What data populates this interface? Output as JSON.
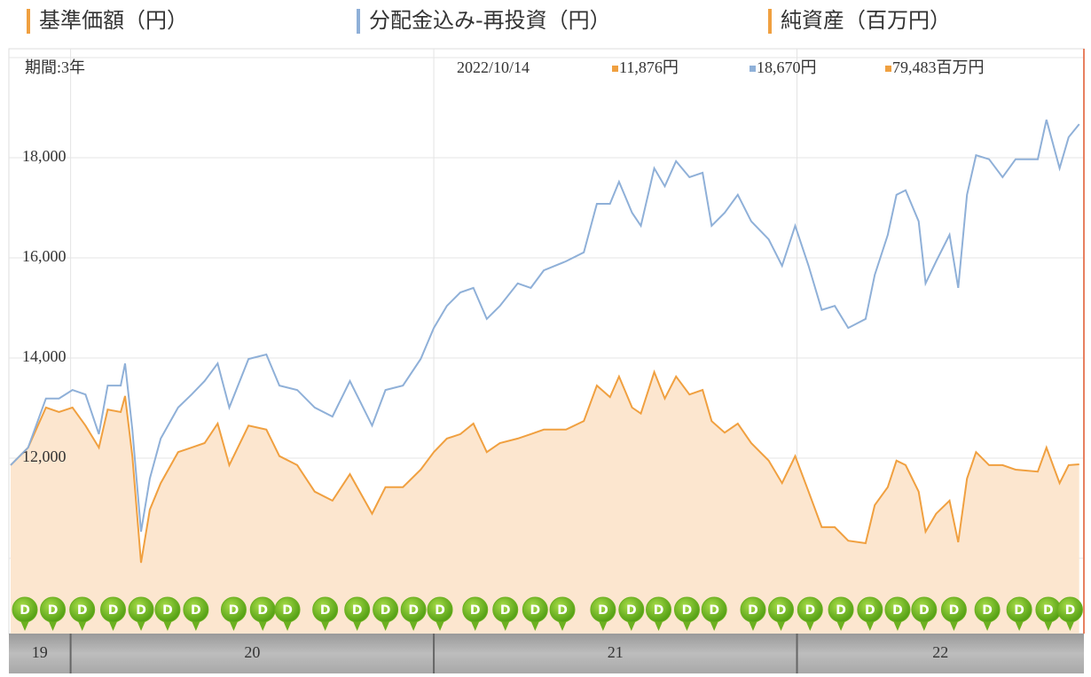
{
  "chart_data": {
    "type": "line",
    "legend": [
      {
        "name": "基準価額（円）",
        "color": "#f0a040"
      },
      {
        "name": "分配金込み-再投資（円）",
        "color": "#8fb0d8"
      },
      {
        "name": "純資産（百万円）",
        "color": "#f0a040"
      }
    ],
    "period_label": "期間:3年",
    "latest_date": "2022/10/14",
    "latest_labels": [
      "11,876円",
      "18,670円",
      "79,483百万円"
    ],
    "latest_colors": [
      "#f0a040",
      "#8fb0d8",
      "#f0a040"
    ],
    "x": [
      2019.835,
      2019.883,
      2019.932,
      2019.968,
      2020.005,
      2020.041,
      2020.078,
      2020.102,
      2020.138,
      2020.15,
      2020.17,
      2020.194,
      2020.218,
      2020.248,
      2020.296,
      2020.333,
      2020.369,
      2020.405,
      2020.437,
      2020.49,
      2020.539,
      2020.575,
      2020.624,
      2020.672,
      2020.721,
      2020.769,
      2020.83,
      2020.867,
      2020.915,
      2020.964,
      2021.0,
      2021.036,
      2021.073,
      2021.109,
      2021.146,
      2021.182,
      2021.231,
      2021.267,
      2021.303,
      2021.364,
      2021.413,
      2021.449,
      2021.485,
      2021.51,
      2021.546,
      2021.57,
      2021.607,
      2021.636,
      2021.667,
      2021.704,
      2021.74,
      2021.765,
      2021.801,
      2021.837,
      2021.874,
      2021.922,
      2021.959,
      2021.995,
      2022.032,
      2022.068,
      2022.104,
      2022.141,
      2022.189,
      2022.214,
      2022.25,
      2022.274,
      2022.299,
      2022.335,
      2022.354,
      2022.383,
      2022.42,
      2022.444,
      2022.468,
      2022.493,
      2022.529,
      2022.566,
      2022.602,
      2022.663,
      2022.687,
      2022.723,
      2022.748,
      2022.777
    ],
    "series": [
      {
        "name": "基準価額（円）",
        "color": "#f0a040",
        "fill": "#fce6cf",
        "values": [
          11860,
          12210,
          13010,
          12920,
          13010,
          12650,
          12210,
          12970,
          12920,
          13240,
          12040,
          9910,
          10970,
          11500,
          12120,
          12210,
          12300,
          12690,
          11860,
          12650,
          12570,
          12040,
          11860,
          11330,
          11150,
          11680,
          10890,
          11420,
          11420,
          11770,
          12120,
          12390,
          12480,
          12690,
          12120,
          12300,
          12390,
          12480,
          12570,
          12570,
          12740,
          13450,
          13220,
          13630,
          13010,
          12890,
          13720,
          13190,
          13630,
          13270,
          13360,
          12740,
          12510,
          12690,
          12300,
          11950,
          11500,
          12040,
          11330,
          10620,
          10620,
          10350,
          10300,
          11060,
          11420,
          11950,
          11860,
          11330,
          10530,
          10890,
          11150,
          10320,
          11590,
          12120,
          11860,
          11860,
          11770,
          11730,
          12210,
          11500,
          11860,
          11876
        ]
      },
      {
        "name": "分配金込み-再投資（円）",
        "color": "#8fb0d8",
        "values": [
          11860,
          12210,
          13190,
          13190,
          13360,
          13270,
          12480,
          13450,
          13450,
          13890,
          12570,
          10530,
          11590,
          12390,
          13010,
          13270,
          13540,
          13890,
          13010,
          13980,
          14070,
          13450,
          13360,
          13010,
          12830,
          13540,
          12650,
          13360,
          13450,
          13980,
          14600,
          15040,
          15310,
          15400,
          14780,
          15040,
          15490,
          15400,
          15750,
          15930,
          16110,
          17080,
          17080,
          17520,
          16900,
          16640,
          17790,
          17430,
          17930,
          17610,
          17700,
          16640,
          16900,
          17260,
          16730,
          16370,
          15840,
          16640,
          15840,
          14960,
          15040,
          14600,
          14780,
          15660,
          16460,
          17260,
          17350,
          16730,
          15490,
          15930,
          16460,
          15400,
          17260,
          18050,
          17970,
          17610,
          17970,
          17970,
          18760,
          17790,
          18410,
          18670
        ]
      }
    ],
    "xlim": [
      2019.83,
      2022.79
    ],
    "xticks": [
      2020,
      2021,
      2022
    ],
    "year_labels": [
      "19",
      "20",
      "21",
      "22"
    ],
    "ylim": [
      8495,
      20177
    ],
    "yticks": [
      {
        "value": 12000,
        "label": "12,000"
      },
      {
        "value": 14000,
        "label": "14,000"
      },
      {
        "value": 16000,
        "label": "16,000"
      },
      {
        "value": 18000,
        "label": "18,000"
      }
    ],
    "ygrid": [
      10000,
      12000,
      14000,
      16000,
      18000,
      20000
    ],
    "grid": true,
    "dividend_label": "D",
    "dividend_color": "#6cb020",
    "dividend_x": [
      2019.874,
      2019.951,
      2020.032,
      2020.117,
      2020.194,
      2020.267,
      2020.345,
      2020.449,
      2020.529,
      2020.597,
      2020.701,
      2020.789,
      2020.867,
      2020.944,
      2021.017,
      2021.114,
      2021.197,
      2021.279,
      2021.354,
      2021.466,
      2021.544,
      2021.619,
      2021.697,
      2021.772,
      2021.879,
      2021.956,
      2022.036,
      2022.121,
      2022.201,
      2022.277,
      2022.35,
      2022.432,
      2022.524,
      2022.612,
      2022.692,
      2022.752
    ]
  }
}
